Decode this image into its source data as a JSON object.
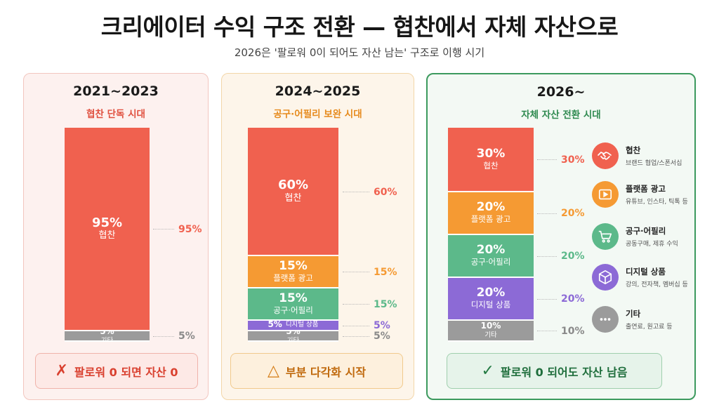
{
  "title": "크리에이터 수익 구조 전환 — 협찬에서 자체 자산으로",
  "subtitle": "2026은 '팔로워 0이 되어도 자산 남는' 구조로 이행 시기",
  "colors": {
    "sponsorship": "#f0614f",
    "platform_ads": "#f59a33",
    "group_buy_affiliate": "#5cb98a",
    "digital_products": "#8c6ad6",
    "other": "#9b9b9b"
  },
  "periods": [
    {
      "period": "2021~2023",
      "subtitle": "협찬 단독 시대",
      "footer_icon": "x-mark-icon",
      "footer_mark": "✗",
      "footer_text": "팔로워 0 되면 자산 0"
    },
    {
      "period": "2024~2025",
      "subtitle": "공구·어필리 보완 시대",
      "footer_icon": "warning-triangle-icon",
      "footer_mark": "△",
      "footer_text": "부분 다각화 시작"
    },
    {
      "period": "2026~",
      "subtitle": "자체 자산 전환 시대",
      "footer_icon": "check-mark-icon",
      "footer_mark": "✓",
      "footer_text": "팔로워 0 되어도 자산 남음"
    }
  ],
  "chart_data": {
    "type": "bar",
    "stacked": true,
    "normalized": true,
    "categories": [
      "2021~2023",
      "2024~2025",
      "2026~"
    ],
    "series": [
      {
        "key": "sponsorship",
        "values": [
          95,
          60,
          30
        ],
        "labels": [
          "협찬",
          "협찬",
          "협찬"
        ],
        "value_labels": [
          "95%",
          "60%",
          "30%"
        ]
      },
      {
        "key": "platform_ads",
        "values": [
          0,
          15,
          20
        ],
        "labels": [
          "",
          "플랫폼 광고",
          "플랫폼 광고"
        ],
        "value_labels": [
          "",
          "15%",
          "20%"
        ]
      },
      {
        "key": "group_buy_affiliate",
        "values": [
          0,
          15,
          20
        ],
        "labels": [
          "",
          "공구·어필리",
          "공구·어필리"
        ],
        "value_labels": [
          "",
          "15%",
          "20%"
        ]
      },
      {
        "key": "digital_products",
        "values": [
          0,
          5,
          20
        ],
        "labels": [
          "",
          "디지털 상품",
          "디지털 상품"
        ],
        "value_labels": [
          "",
          "5%",
          "20%"
        ]
      },
      {
        "key": "other",
        "values": [
          5,
          5,
          10
        ],
        "labels": [
          "기타",
          "기타",
          "기타"
        ],
        "value_labels": [
          "5%",
          "5%",
          "10%"
        ]
      }
    ],
    "legend_position": "right",
    "grid": false
  },
  "legend": [
    {
      "key": "sponsorship",
      "icon": "handshake-icon",
      "title": "협찬",
      "desc": "브랜드 협업/스폰서십"
    },
    {
      "key": "platform_ads",
      "icon": "play-button-icon",
      "title": "플랫폼 광고",
      "desc": "유튜브, 인스타, 틱톡 등"
    },
    {
      "key": "group_buy_affiliate",
      "icon": "shopping-cart-icon",
      "title": "공구·어필리",
      "desc": "공동구매, 제휴 수익"
    },
    {
      "key": "digital_products",
      "icon": "box-cube-icon",
      "title": "디지털 상품",
      "desc": "강의, 전자책, 멤버십 등"
    },
    {
      "key": "other",
      "icon": "more-dots-icon",
      "title": "기타",
      "desc": "출연료, 원고료 등"
    }
  ]
}
